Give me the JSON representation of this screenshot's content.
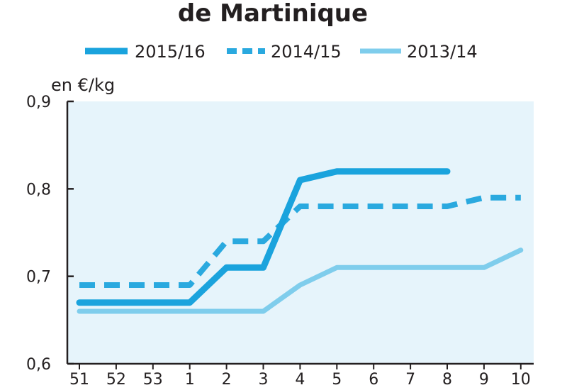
{
  "chart_data": {
    "type": "line",
    "title": "de Martinique",
    "ylabel": "en €/kg",
    "xlabel": "",
    "categories": [
      "51",
      "52",
      "53",
      "1",
      "2",
      "3",
      "4",
      "5",
      "6",
      "7",
      "8",
      "9",
      "10"
    ],
    "y_ticks": [
      "0,6",
      "0,7",
      "0,8",
      "0,9"
    ],
    "ylim": [
      0.6,
      0.9
    ],
    "grid": false,
    "legend_position": "top",
    "colors": {
      "plot_background": "#e6f4fb",
      "axis": "#231f20",
      "series_2015_16": "#1aa3dd",
      "series_2014_15": "#2aa9df",
      "series_2013_14": "#7fcdec"
    },
    "series": [
      {
        "name": "2015/16",
        "style": "solid-thick",
        "values": [
          0.67,
          0.67,
          0.67,
          0.67,
          0.71,
          0.71,
          0.81,
          0.82,
          0.82,
          0.82,
          0.82,
          null,
          null
        ]
      },
      {
        "name": "2014/15",
        "style": "dashed",
        "values": [
          0.69,
          0.69,
          0.69,
          0.69,
          0.74,
          0.74,
          0.78,
          0.78,
          0.78,
          0.78,
          0.78,
          0.79,
          0.79
        ]
      },
      {
        "name": "2013/14",
        "style": "solid-light",
        "values": [
          0.66,
          0.66,
          0.66,
          0.66,
          0.66,
          0.66,
          0.69,
          0.71,
          0.71,
          0.71,
          0.71,
          0.71,
          0.73
        ]
      }
    ]
  }
}
